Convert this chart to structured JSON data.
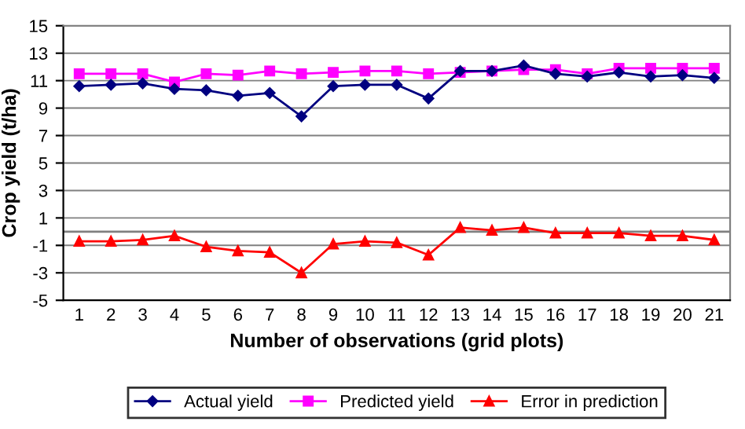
{
  "chart_data": {
    "type": "line",
    "xlabel": "Number of observations (grid plots)",
    "ylabel": "Crop yield (t/ha)",
    "categories": [
      "1",
      "2",
      "3",
      "4",
      "5",
      "6",
      "7",
      "8",
      "9",
      "10",
      "11",
      "12",
      "13",
      "14",
      "15",
      "16",
      "17",
      "18",
      "19",
      "20",
      "21"
    ],
    "series": [
      {
        "name": "Actual yield",
        "color": "#000080",
        "marker": "diamond",
        "values": [
          10.6,
          10.7,
          10.8,
          10.4,
          10.3,
          9.9,
          10.1,
          8.4,
          10.6,
          10.7,
          10.7,
          9.7,
          11.7,
          11.7,
          12.1,
          11.5,
          11.3,
          11.6,
          11.3,
          11.4,
          11.2
        ]
      },
      {
        "name": "Predicted yield",
        "color": "#ff00ff",
        "marker": "square",
        "values": [
          11.5,
          11.5,
          11.5,
          10.9,
          11.5,
          11.4,
          11.7,
          11.5,
          11.6,
          11.7,
          11.7,
          11.5,
          11.6,
          11.7,
          11.8,
          11.8,
          11.5,
          11.9,
          11.9,
          11.9,
          11.9
        ]
      },
      {
        "name": "Error in prediction",
        "color": "#ff0000",
        "marker": "triangle",
        "values": [
          -0.7,
          -0.7,
          -0.6,
          -0.3,
          -1.1,
          -1.4,
          -1.5,
          -3.0,
          -0.9,
          -0.7,
          -0.8,
          -1.7,
          0.3,
          0.1,
          0.3,
          -0.1,
          -0.1,
          -0.1,
          -0.3,
          -0.3,
          -0.6
        ]
      }
    ],
    "ylim": [
      -5,
      15
    ],
    "yticks": [
      -5,
      -3,
      -1,
      1,
      3,
      5,
      7,
      9,
      11,
      13,
      15
    ],
    "grid": "y",
    "legend": "bottom",
    "ref_lines": [
      {
        "axis": "y",
        "value": 0,
        "color": "#808080"
      }
    ]
  }
}
